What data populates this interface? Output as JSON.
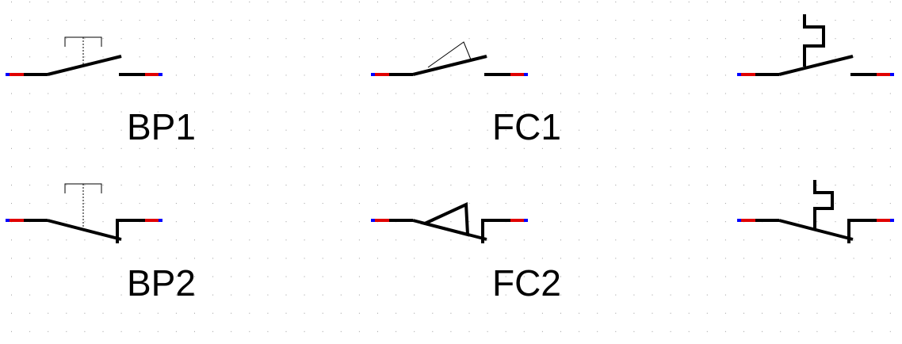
{
  "labels": {
    "bp1": "BP1",
    "fc1": "FC1",
    "bp2": "BP2",
    "fc2": "FC2"
  },
  "colors": {
    "wire": "#000000",
    "pin_end": "#e00000",
    "pin_tip": "#0000ff",
    "grid_dot": "#9a9a9a",
    "background": "#ffffff"
  },
  "grid": {
    "visible": true
  }
}
